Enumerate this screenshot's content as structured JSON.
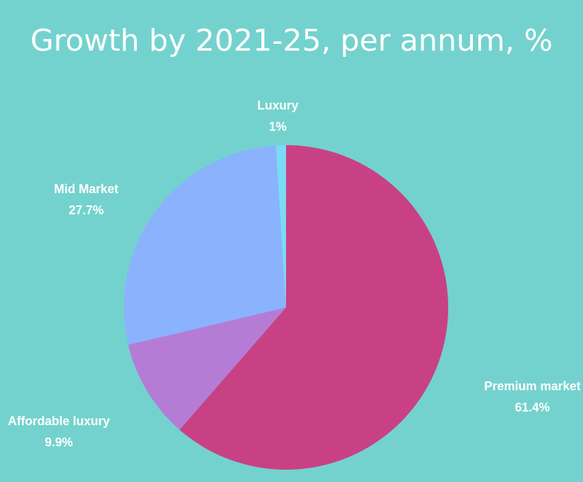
{
  "chart_data": {
    "type": "pie",
    "title": "Growth by 2021-25, per annum, %",
    "start_angle_deg": 0,
    "direction": "clockwise",
    "slices": [
      {
        "label": "Premium market",
        "value": 61.4,
        "value_label": "61.4%",
        "color": "#C84185"
      },
      {
        "label": "Affordable luxury",
        "value": 9.9,
        "value_label": "9.9%",
        "color": "#B57CD6"
      },
      {
        "label": "Mid Market",
        "value": 27.7,
        "value_label": "27.7%",
        "color": "#8BB2FD"
      },
      {
        "label": "Luxury",
        "value": 1,
        "value_label": "1%",
        "color": "#7ADBF4"
      }
    ]
  },
  "colors": {
    "background": "#74D2CE",
    "text": "#ffffff"
  }
}
